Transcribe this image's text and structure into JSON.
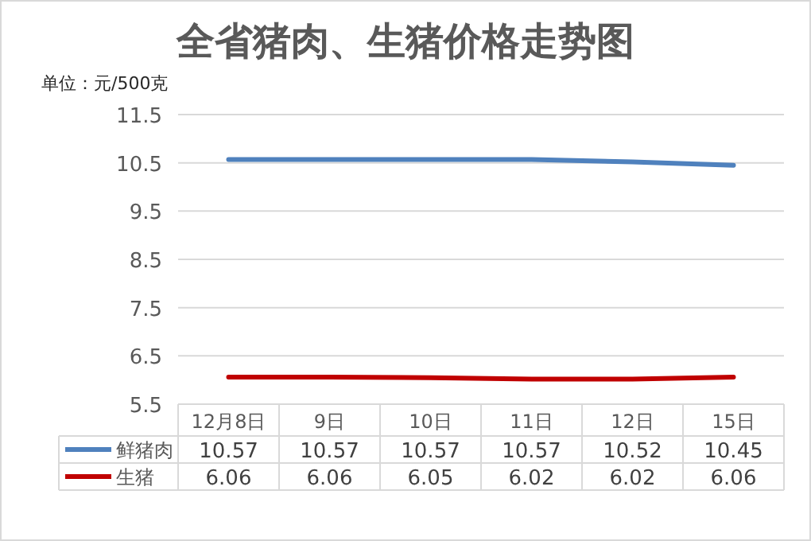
{
  "chart_data": {
    "type": "line",
    "title": "全省猪肉、生猪价格走势图",
    "ylabel": "单位：元/500克",
    "categories": [
      "12月8日",
      "9日",
      "10日",
      "11日",
      "12日",
      "15日"
    ],
    "series": [
      {
        "name": "鲜猪肉",
        "color": "#4f81bd",
        "values": [
          10.57,
          10.57,
          10.57,
          10.57,
          10.52,
          10.45
        ]
      },
      {
        "name": "生猪",
        "color": "#c00000",
        "values": [
          6.06,
          6.06,
          6.05,
          6.02,
          6.02,
          6.06
        ]
      }
    ],
    "ylim": [
      5.5,
      11.5
    ],
    "yticks": [
      5.5,
      6.5,
      7.5,
      8.5,
      9.5,
      10.5,
      11.5
    ],
    "grid": "y",
    "data_labels": true,
    "legend": "bottom",
    "marker": "none"
  }
}
